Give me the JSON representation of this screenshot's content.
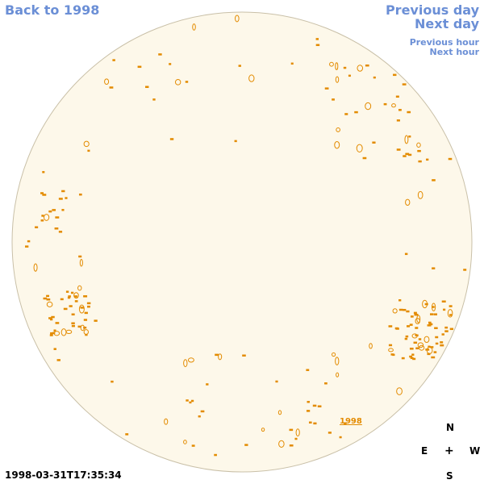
{
  "nav": {
    "back_label": "Back to 1998",
    "previous_day_label": "Previous day",
    "next_day_label": "Next day",
    "previous_hour_label": "Previous hour",
    "next_hour_label": "Next hour"
  },
  "timestamp": "1998-03-31T17:35:34",
  "year_label": "1998",
  "compass": {
    "n": "N",
    "e": "E",
    "w": "W",
    "s": "S",
    "center": "+"
  },
  "colors": {
    "disk_fill": "#fdf8ea",
    "disk_stroke": "#c9c0a8",
    "feature": "#e38b00",
    "link": "#6b8fd6"
  }
}
